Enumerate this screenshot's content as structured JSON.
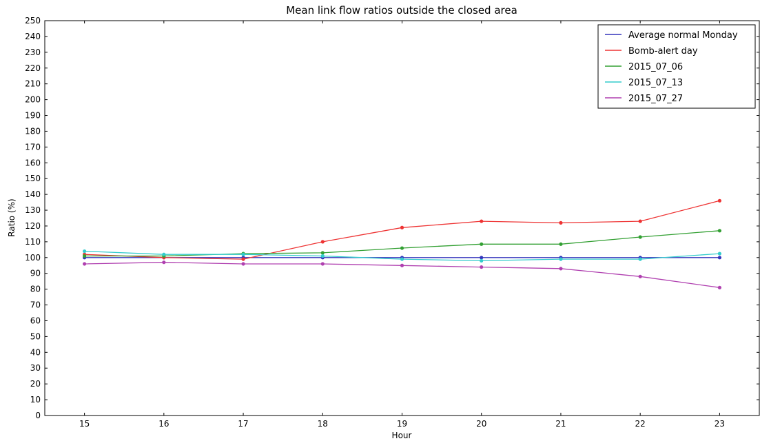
{
  "chart_data": {
    "type": "line",
    "title": "Mean link flow ratios outside the closed area",
    "xlabel": "Hour",
    "ylabel": "Ratio (%)",
    "x": [
      15,
      16,
      17,
      18,
      19,
      20,
      21,
      22,
      23
    ],
    "xlim": [
      14.5,
      23.5
    ],
    "ylim": [
      0,
      250
    ],
    "ytick_step": 10,
    "grid": false,
    "legend_position": "top-right",
    "series": [
      {
        "name": "Average normal Monday",
        "color": "#3333bb",
        "values": [
          100,
          100,
          100,
          100,
          100,
          100,
          100,
          100,
          100
        ]
      },
      {
        "name": "Bomb-alert day",
        "color": "#ee3333",
        "values": [
          102,
          100,
          99,
          110,
          119,
          123,
          122,
          123,
          136
        ]
      },
      {
        "name": "2015_07_06",
        "color": "#33a033",
        "values": [
          101,
          101,
          102.5,
          103,
          106,
          108.5,
          108.5,
          113,
          117
        ]
      },
      {
        "name": "2015_07_13",
        "color": "#33cccc",
        "values": [
          104,
          102,
          102,
          101,
          99,
          98,
          99,
          99,
          102.5
        ]
      },
      {
        "name": "2015_07_27",
        "color": "#b040b0",
        "values": [
          96,
          97,
          96,
          96,
          95,
          94,
          93,
          88,
          81
        ]
      }
    ]
  }
}
